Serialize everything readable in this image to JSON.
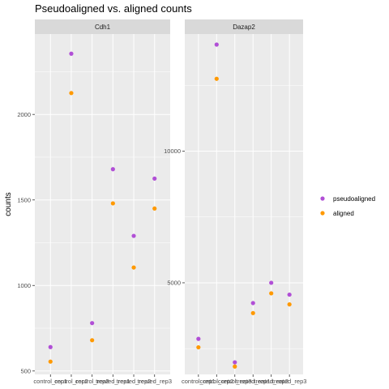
{
  "chart_data": {
    "type": "scatter",
    "title": "Pseudoaligned vs. aligned counts",
    "ylabel": "counts",
    "xlabel": "",
    "categories": [
      "control_rep1",
      "control_rep2",
      "control_rep3",
      "treated_rep1",
      "treated_rep2",
      "treated_rep3"
    ],
    "legend": {
      "placement": "right",
      "entries": [
        {
          "name": "pseudoaligned",
          "color": "#b14fd6"
        },
        {
          "name": "aligned",
          "color": "#ff9900"
        }
      ]
    },
    "grid": true,
    "panels": [
      {
        "name": "Cdh1",
        "ylim": [
          480,
          2470
        ],
        "y_ticks": [
          500,
          1000,
          1500,
          2000
        ],
        "y_tick_labels": [
          "500",
          "1000",
          "1500",
          "2000"
        ],
        "series": [
          {
            "name": "pseudoaligned",
            "values": [
              640,
              2355,
              780,
              1680,
              1290,
              1625
            ]
          },
          {
            "name": "aligned",
            "values": [
              555,
              2125,
              680,
              1480,
              1105,
              1450
            ]
          }
        ]
      },
      {
        "name": "Dazap2",
        "ylim": [
          1520,
          14450
        ],
        "y_ticks": [
          5000,
          10000
        ],
        "y_tick_labels": [
          "5000",
          "10000"
        ],
        "series": [
          {
            "name": "pseudoaligned",
            "values": [
              2870,
              14050,
              1980,
              4230,
              5000,
              4550
            ]
          },
          {
            "name": "aligned",
            "values": [
              2550,
              12750,
              1820,
              3850,
              4600,
              4180
            ]
          }
        ]
      }
    ]
  }
}
